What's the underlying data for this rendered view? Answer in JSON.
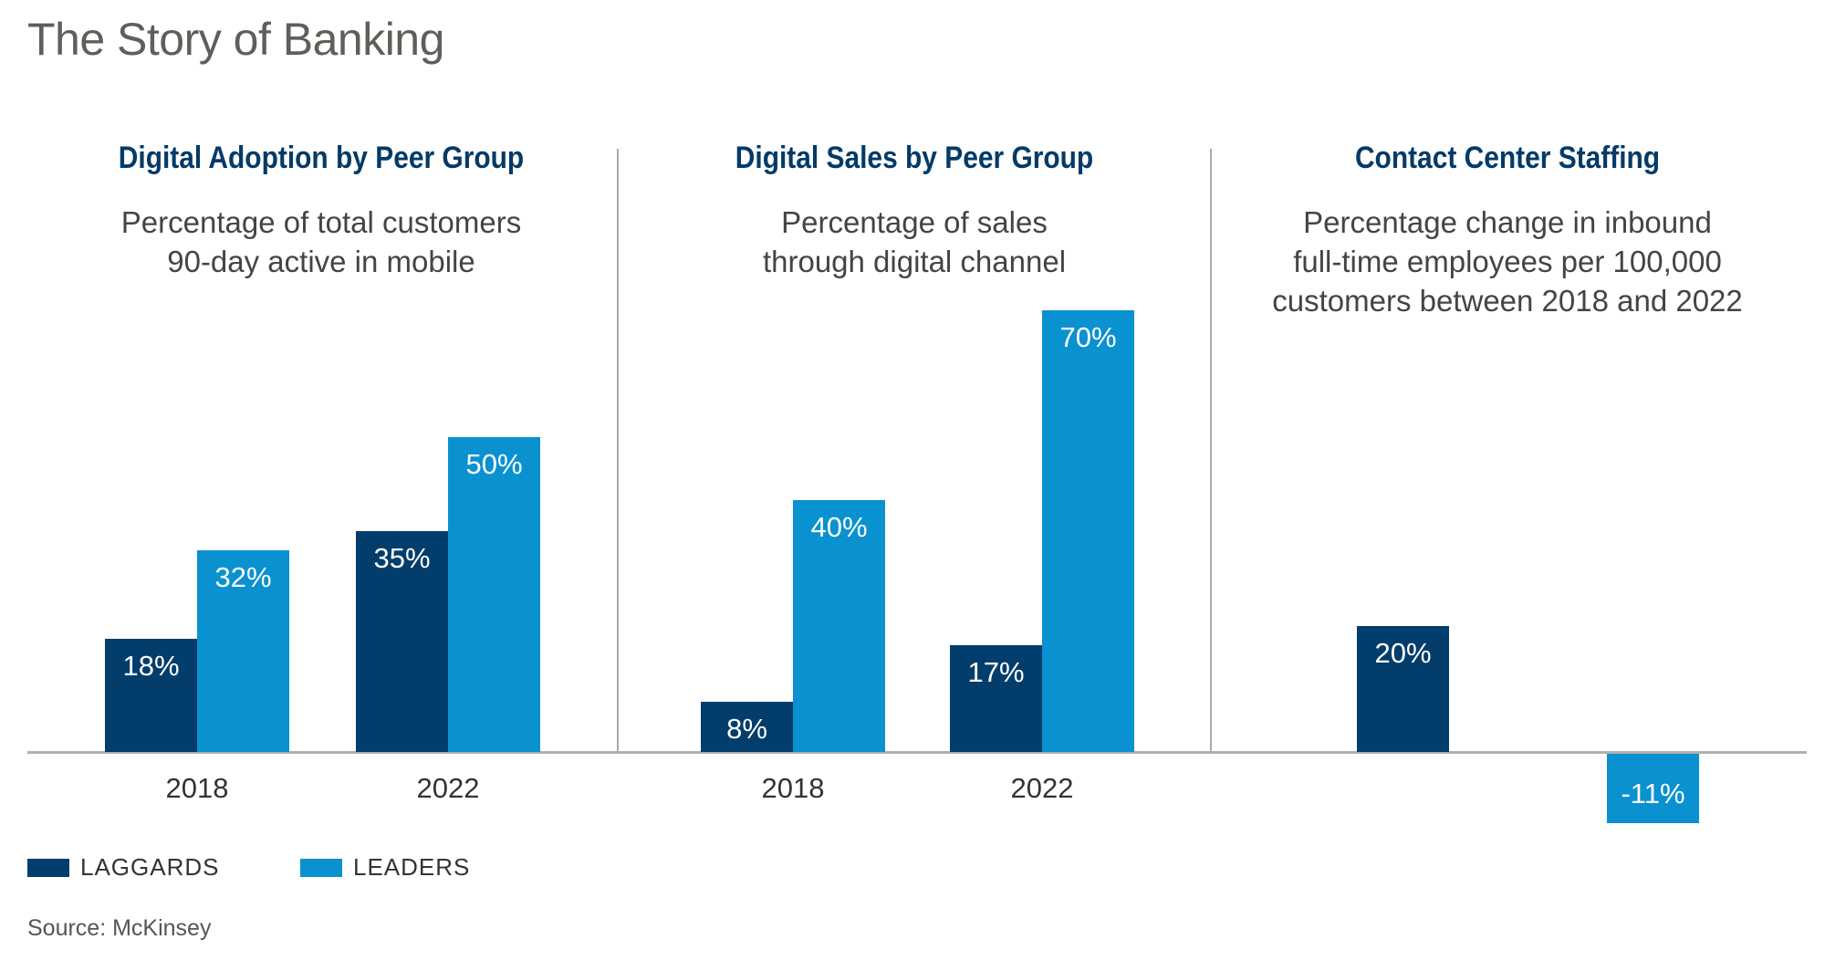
{
  "title": "The Story of Banking",
  "colors": {
    "laggards": "#023d6b",
    "leaders": "#0a91d0"
  },
  "legend": [
    {
      "label": "LAGGARDS"
    },
    {
      "label": "LEADERS"
    }
  ],
  "source": "Source: McKinsey",
  "chart_data": [
    {
      "type": "bar",
      "title": "Digital Adoption by Peer Group",
      "subtitle": [
        "Percentage of total customers",
        "90-day active in mobile"
      ],
      "categories": [
        "2018",
        "2022"
      ],
      "series": [
        {
          "name": "LAGGARDS",
          "values": [
            18,
            35
          ],
          "labels": [
            "18%",
            "35%"
          ]
        },
        {
          "name": "LEADERS",
          "values": [
            32,
            50
          ],
          "labels": [
            "32%",
            "50%"
          ]
        }
      ],
      "ylabel": "",
      "xlabel": "",
      "grid": false
    },
    {
      "type": "bar",
      "title": "Digital Sales by Peer Group",
      "subtitle": [
        "Percentage of sales",
        "through digital channel"
      ],
      "categories": [
        "2018",
        "2022"
      ],
      "series": [
        {
          "name": "LAGGARDS",
          "values": [
            8,
            17
          ],
          "labels": [
            "8%",
            "17%"
          ]
        },
        {
          "name": "LEADERS",
          "values": [
            40,
            70
          ],
          "labels": [
            "40%",
            "70%"
          ]
        }
      ],
      "ylabel": "",
      "xlabel": "",
      "grid": false
    },
    {
      "type": "bar",
      "title": "Contact Center Staffing",
      "subtitle": [
        "Percentage change in inbound",
        "full-time employees per 100,000",
        "customers between 2018 and 2022"
      ],
      "categories": [
        ""
      ],
      "series": [
        {
          "name": "LAGGARDS",
          "values": [
            20
          ],
          "labels": [
            "20%"
          ]
        },
        {
          "name": "LEADERS",
          "values": [
            -11
          ],
          "labels": [
            "-11%"
          ]
        }
      ],
      "ylabel": "",
      "xlabel": "",
      "grid": false
    }
  ]
}
